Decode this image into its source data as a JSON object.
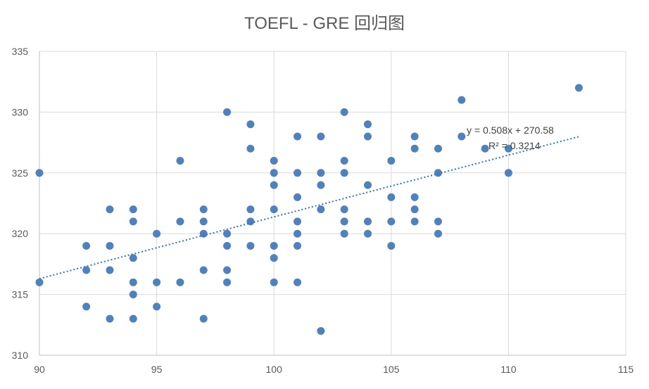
{
  "chart_data": {
    "type": "scatter",
    "title": "TOEFL - GRE 回归图",
    "xlabel": "",
    "ylabel": "",
    "xlim": [
      90,
      115
    ],
    "ylim": [
      310,
      335
    ],
    "xticks": [
      90,
      95,
      100,
      105,
      110,
      115
    ],
    "yticks": [
      310,
      315,
      320,
      325,
      330,
      335
    ],
    "grid": true,
    "marker_color": "#4f81bd",
    "trendline": {
      "slope": 0.508,
      "intercept": 270.58,
      "r2": 0.3214,
      "equation_label": "y = 0.508x + 270.58",
      "r2_label": "R² = 0.3214",
      "x_range": [
        90,
        113
      ],
      "style": "dotted",
      "color": "#2e75b6"
    },
    "points": [
      [
        90,
        325
      ],
      [
        90,
        316
      ],
      [
        92,
        319
      ],
      [
        92,
        317
      ],
      [
        92,
        314
      ],
      [
        93,
        322
      ],
      [
        93,
        319
      ],
      [
        93,
        317
      ],
      [
        93,
        313
      ],
      [
        94,
        322
      ],
      [
        94,
        321
      ],
      [
        94,
        318
      ],
      [
        94,
        316
      ],
      [
        94,
        315
      ],
      [
        94,
        313
      ],
      [
        95,
        320
      ],
      [
        95,
        316
      ],
      [
        95,
        314
      ],
      [
        96,
        326
      ],
      [
        96,
        321
      ],
      [
        96,
        316
      ],
      [
        97,
        322
      ],
      [
        97,
        321
      ],
      [
        97,
        320
      ],
      [
        97,
        317
      ],
      [
        97,
        313
      ],
      [
        98,
        330
      ],
      [
        98,
        320
      ],
      [
        98,
        319
      ],
      [
        98,
        317
      ],
      [
        98,
        316
      ],
      [
        99,
        329
      ],
      [
        99,
        327
      ],
      [
        99,
        322
      ],
      [
        99,
        321
      ],
      [
        99,
        319
      ],
      [
        100,
        326
      ],
      [
        100,
        325
      ],
      [
        100,
        324
      ],
      [
        100,
        322
      ],
      [
        100,
        319
      ],
      [
        100,
        318
      ],
      [
        100,
        316
      ],
      [
        101,
        328
      ],
      [
        101,
        325
      ],
      [
        101,
        323
      ],
      [
        101,
        321
      ],
      [
        101,
        320
      ],
      [
        101,
        319
      ],
      [
        101,
        316
      ],
      [
        102,
        328
      ],
      [
        102,
        325
      ],
      [
        102,
        324
      ],
      [
        102,
        322
      ],
      [
        102,
        312
      ],
      [
        103,
        330
      ],
      [
        103,
        326
      ],
      [
        103,
        325
      ],
      [
        103,
        322
      ],
      [
        103,
        321
      ],
      [
        103,
        320
      ],
      [
        104,
        329
      ],
      [
        104,
        328
      ],
      [
        104,
        324
      ],
      [
        104,
        321
      ],
      [
        104,
        320
      ],
      [
        105,
        326
      ],
      [
        105,
        323
      ],
      [
        105,
        321
      ],
      [
        105,
        319
      ],
      [
        106,
        328
      ],
      [
        106,
        327
      ],
      [
        106,
        323
      ],
      [
        106,
        322
      ],
      [
        106,
        321
      ],
      [
        107,
        327
      ],
      [
        107,
        325
      ],
      [
        107,
        321
      ],
      [
        107,
        320
      ],
      [
        108,
        331
      ],
      [
        108,
        328
      ],
      [
        109,
        327
      ],
      [
        110,
        327
      ],
      [
        110,
        325
      ],
      [
        113,
        332
      ]
    ]
  }
}
